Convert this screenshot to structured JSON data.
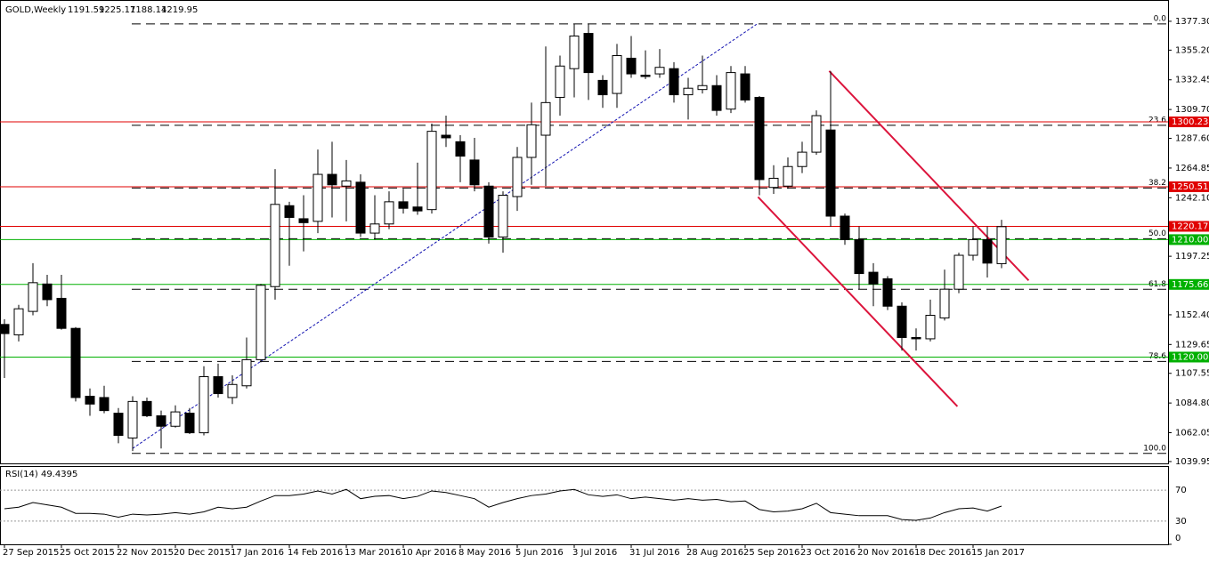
{
  "chart_data": {
    "type": "candlestick",
    "symbol": "GOLD,Weekly",
    "categories": [
      "27 Sep 2015",
      null,
      null,
      null,
      "25 Oct 2015",
      null,
      null,
      null,
      "22 Nov 2015",
      null,
      null,
      null,
      "20 Dec 2015",
      null,
      null,
      null,
      "17 Jan 2016",
      null,
      null,
      null,
      "14 Feb 2016",
      null,
      null,
      null,
      "13 Mar 2016",
      null,
      null,
      null,
      "10 Apr 2016",
      null,
      null,
      null,
      "8 May 2016",
      null,
      null,
      null,
      "5 Jun 2016",
      null,
      null,
      null,
      "3 Jul 2016",
      null,
      null,
      null,
      "31 Jul 2016",
      null,
      null,
      null,
      "28 Aug 2016",
      null,
      null,
      null,
      "25 Sep 2016",
      null,
      null,
      null,
      "23 Oct 2016",
      null,
      null,
      null,
      "20 Nov 2016",
      null,
      null,
      null,
      "18 Dec 2016",
      null,
      null,
      null,
      "15 Jan 2017",
      null,
      null
    ],
    "open": [
      1145,
      1137,
      1155,
      1176,
      1165,
      1142,
      1090,
      1089,
      1077,
      1058,
      1086,
      1075,
      1067,
      1077,
      1062,
      1105,
      1089,
      1098,
      1118,
      1174,
      1236,
      1226,
      1224,
      1260,
      1251,
      1254,
      1215,
      1222,
      1239,
      1235,
      1233,
      1290,
      1285,
      1271,
      1251,
      1212,
      1243,
      1273,
      1290,
      1319,
      1341,
      1368,
      1332,
      1322,
      1349,
      1336,
      1337,
      1341,
      1321,
      1325,
      1328,
      1310,
      1337,
      1319,
      1250,
      1251,
      1266,
      1277,
      1294,
      1228,
      1210,
      1185,
      1180,
      1159,
      1135,
      1134,
      1150,
      1172,
      1198,
      1210,
      1191.59
    ],
    "high": [
      1149,
      1160,
      1192,
      1183,
      1183,
      1143,
      1096,
      1098,
      1081,
      1090,
      1089,
      1079,
      1083,
      1081,
      1113,
      1115,
      1106,
      1135,
      1176,
      1264,
      1239,
      1244,
      1279,
      1285,
      1271,
      1260,
      1244,
      1247,
      1249,
      1269,
      1299,
      1305,
      1290,
      1288,
      1254,
      1247,
      1281,
      1315,
      1358,
      1351,
      1375,
      1375,
      1336,
      1360,
      1366,
      1355,
      1356,
      1346,
      1334,
      1351,
      1336,
      1343,
      1343,
      1320,
      1267,
      1273,
      1285,
      1309,
      1339,
      1230,
      1220,
      1192,
      1182,
      1162,
      1142,
      1164,
      1187,
      1200,
      1220,
      1220,
      1225.17
    ],
    "low": [
      1104,
      1132,
      1152,
      1159,
      1141,
      1086,
      1075,
      1077,
      1054,
      1048,
      1074,
      1050,
      1066,
      1061,
      1060,
      1089,
      1084,
      1096,
      1116,
      1164,
      1190,
      1201,
      1215,
      1227,
      1224,
      1212,
      1210,
      1218,
      1230,
      1229,
      1230,
      1281,
      1254,
      1247,
      1207,
      1200,
      1232,
      1252,
      1251,
      1305,
      1319,
      1317,
      1311,
      1311,
      1334,
      1333,
      1334,
      1315,
      1302,
      1322,
      1305,
      1307,
      1315,
      1244,
      1245,
      1249,
      1261,
      1275,
      1220,
      1206,
      1172,
      1159,
      1156,
      1125,
      1125,
      1132,
      1148,
      1169,
      1194,
      1181,
      1188.14
    ],
    "close": [
      1138,
      1157,
      1177,
      1164,
      1142,
      1089,
      1084,
      1079,
      1060,
      1086,
      1075,
      1067,
      1078,
      1062,
      1105,
      1092,
      1099,
      1118,
      1175,
      1237,
      1227,
      1223,
      1260,
      1252,
      1255,
      1215,
      1222,
      1239,
      1234,
      1232,
      1293,
      1288,
      1274,
      1252,
      1212,
      1244,
      1273,
      1298,
      1315,
      1343,
      1366,
      1338,
      1321,
      1351,
      1337,
      1335,
      1342,
      1321,
      1326,
      1328,
      1309,
      1338,
      1317,
      1256,
      1257,
      1266,
      1277,
      1305,
      1228,
      1210,
      1184,
      1176,
      1159,
      1135,
      1134,
      1152,
      1172,
      1198,
      1210,
      1192,
      1219.95
    ],
    "ylim": [
      1036.5,
      1390.2
    ],
    "yticks": [
      {
        "value": 1377.3,
        "label": "1377.30"
      },
      {
        "value": 1355.2,
        "label": "1355.20"
      },
      1332.45,
      {
        "value": 1309.7,
        "label": "1309.70"
      },
      {
        "value": 1287.6,
        "label": "1287.60"
      },
      1264.85,
      {
        "value": 1242.1,
        "label": "1242.10"
      },
      1197.25,
      {
        "value": 1152.4,
        "label": "1152.40"
      },
      1129.65,
      1107.55,
      {
        "value": 1084.8,
        "label": "1084.80"
      },
      1062.05,
      1039.95
    ],
    "levels": [
      {
        "value": 1300.23,
        "color": "#e00000"
      },
      {
        "value": 1250.51,
        "color": "#e00000"
      },
      {
        "value": 1220.17,
        "color": "#e00000"
      },
      {
        "value": {
          "value": 1210,
          "label": "1210.00"
        },
        "color": "#00b000"
      },
      {
        "value": 1175.66,
        "color": "#00b000"
      },
      {
        "value": {
          "value": 1120,
          "label": "1120.00"
        },
        "color": "#00b000"
      }
    ],
    "fib": {
      "high": 1375.3,
      "low": 1046.2,
      "levels": [
        {
          "value": 0,
          "label": "0.0"
        },
        23.6,
        38.2,
        {
          "value": 50,
          "label": "50.0"
        },
        61.8,
        78.6,
        {
          "value": 100,
          "label": "100.0"
        }
      ]
    },
    "trendlines": [
      {
        "x": [
          9,
          52.8
        ],
        "y": [
          1050,
          1375
        ],
        "color": "#1010b0",
        "style": "dotted"
      },
      {
        "x": [
          57.9,
          71.9
        ],
        "y": [
          1339.2,
          1178.7
        ],
        "color": "#dc143c",
        "style": "solid"
      },
      {
        "x": [
          52.9,
          66.9
        ],
        "y": [
          1242.7,
          1082.2
        ],
        "color": "#dc143c",
        "style": "solid"
      }
    ],
    "rsi": {
      "label": "RSI(14) 49.4395",
      "ylim": [
        0,
        100
      ],
      "yticks": [
        70,
        30,
        0
      ],
      "values": [
        46,
        48,
        54,
        51,
        48,
        40,
        40,
        39,
        35,
        39,
        38,
        39,
        41,
        39,
        42,
        48,
        46,
        48,
        56,
        63,
        63,
        65,
        69,
        65,
        71,
        59,
        62,
        63,
        59,
        62,
        69,
        67,
        63,
        59,
        48,
        54,
        59,
        63,
        65,
        69,
        71,
        64,
        62,
        64,
        59,
        61,
        59,
        57,
        59,
        57,
        58,
        55,
        56,
        45,
        42,
        43,
        46,
        53,
        41,
        39,
        37,
        37,
        37,
        32,
        31,
        34,
        41,
        46,
        47,
        43,
        49.4395
      ]
    }
  }
}
